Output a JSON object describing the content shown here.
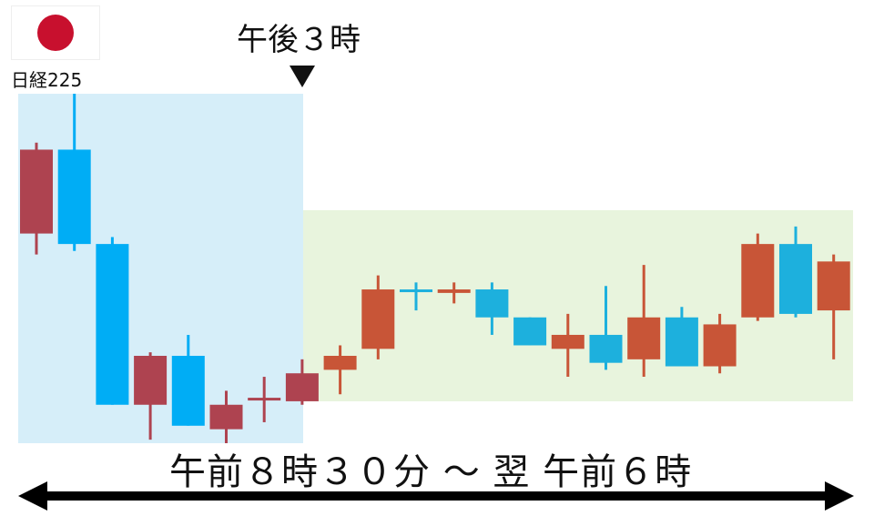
{
  "market": {
    "flag_icon": "japan-flag-icon",
    "label": "日経225"
  },
  "marker": {
    "label": "午後３時",
    "icon": "down-triangle-icon"
  },
  "range": {
    "label": "午前８時３０分 ～ 翌 午前６時",
    "icon": "double-headed-arrow-icon"
  },
  "colors": {
    "tse_session_bg": "#d6eef9",
    "extended_session_bg": "#e8f4dd",
    "up_tse": "#ae4350",
    "down_tse": "#00adf5",
    "up_extended": "#c85537",
    "down_extended": "#1db0dd",
    "flag_red": "#c8102e"
  },
  "chart_data": {
    "type": "candlestick",
    "title": "",
    "xlabel": "",
    "ylabel": "",
    "ylim": [
      0,
      100
    ],
    "sessions": [
      {
        "name": "",
        "start_index": 0,
        "end_index": 7
      },
      {
        "name": "",
        "start_index": 8,
        "end_index": 21
      }
    ],
    "candles": [
      {
        "open": 84,
        "close": 60,
        "high": 86,
        "low": 54,
        "direction": "up"
      },
      {
        "open": 84,
        "close": 57,
        "high": 100,
        "low": 55,
        "direction": "down"
      },
      {
        "open": 57,
        "close": 11,
        "high": 59,
        "low": 11,
        "direction": "down"
      },
      {
        "open": 25,
        "close": 11,
        "high": 26,
        "low": 1,
        "direction": "up"
      },
      {
        "open": 25,
        "close": 5,
        "high": 31,
        "low": 5,
        "direction": "down"
      },
      {
        "open": 11,
        "close": 4,
        "high": 15,
        "low": 0,
        "direction": "up"
      },
      {
        "open": 13,
        "close": 12.5,
        "high": 19,
        "low": 6,
        "direction": "up"
      },
      {
        "open": 20,
        "close": 12,
        "high": 24,
        "low": 11,
        "direction": "up"
      },
      {
        "open": 25,
        "close": 21,
        "high": 28,
        "low": 14,
        "direction": "up"
      },
      {
        "open": 44,
        "close": 27,
        "high": 48,
        "low": 24,
        "direction": "up"
      },
      {
        "open": 44,
        "close": 43.5,
        "high": 46,
        "low": 38,
        "direction": "down"
      },
      {
        "open": 44,
        "close": 43,
        "high": 46,
        "low": 40,
        "direction": "up"
      },
      {
        "open": 44,
        "close": 36,
        "high": 46,
        "low": 31,
        "direction": "down"
      },
      {
        "open": 36,
        "close": 28,
        "high": 36,
        "low": 28,
        "direction": "down"
      },
      {
        "open": 31,
        "close": 27,
        "high": 37,
        "low": 19,
        "direction": "up"
      },
      {
        "open": 31,
        "close": 23,
        "high": 45,
        "low": 21,
        "direction": "down"
      },
      {
        "open": 36,
        "close": 24,
        "high": 51,
        "low": 19,
        "direction": "up"
      },
      {
        "open": 36,
        "close": 22,
        "high": 39,
        "low": 22,
        "direction": "down"
      },
      {
        "open": 34,
        "close": 22,
        "high": 37,
        "low": 20,
        "direction": "up"
      },
      {
        "open": 57,
        "close": 36,
        "high": 60,
        "low": 35,
        "direction": "up"
      },
      {
        "open": 57,
        "close": 37,
        "high": 62,
        "low": 36,
        "direction": "down"
      },
      {
        "open": 52,
        "close": 38,
        "high": 54,
        "low": 24,
        "direction": "up"
      }
    ]
  }
}
